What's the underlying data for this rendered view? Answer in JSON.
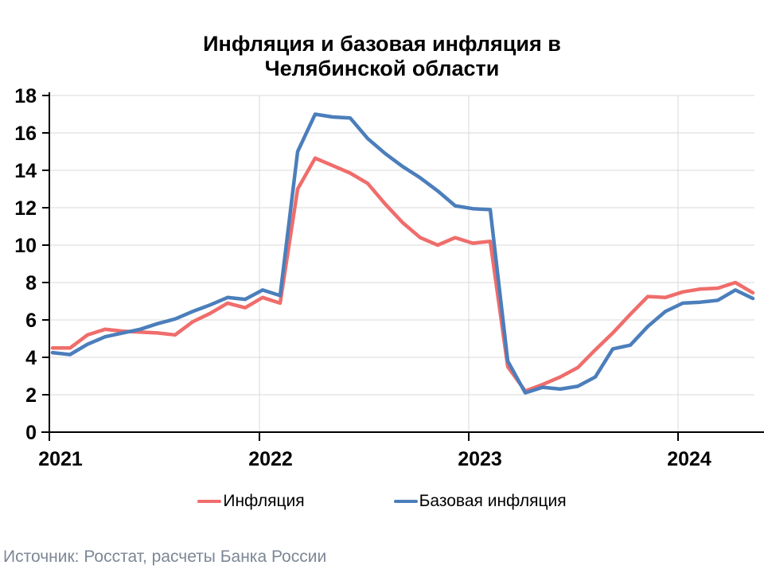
{
  "chart": {
    "title": "Инфляция и базовая инфляция в Челябинской области",
    "source_note": "Источник: Росстат, расчеты Банка России",
    "legend": [
      {
        "label": "Инфляция",
        "color": "#EF6D6B"
      },
      {
        "label": "Базовая инфляция",
        "color": "#4B7EBB"
      }
    ]
  },
  "chart_data": {
    "type": "line",
    "title": "Инфляция и базовая инфляция в Челябинской области",
    "xlabel": "",
    "ylabel": "",
    "ylim": [
      0,
      18
    ],
    "y_tick_step": 2,
    "grid": true,
    "legend_position": "bottom",
    "x_tick_labels": [
      "2021",
      "2022",
      "2023",
      "2024"
    ],
    "x": [
      "2021-01",
      "2021-02",
      "2021-03",
      "2021-04",
      "2021-05",
      "2021-06",
      "2021-07",
      "2021-08",
      "2021-09",
      "2021-10",
      "2021-11",
      "2021-12",
      "2022-01",
      "2022-02",
      "2022-03",
      "2022-04",
      "2022-05",
      "2022-06",
      "2022-07",
      "2022-08",
      "2022-09",
      "2022-10",
      "2022-11",
      "2022-12",
      "2023-01",
      "2023-02",
      "2023-03",
      "2023-04",
      "2023-05",
      "2023-06",
      "2023-07",
      "2023-08",
      "2023-09",
      "2023-10",
      "2023-11",
      "2023-12",
      "2024-01",
      "2024-02",
      "2024-03",
      "2024-04",
      "2024-05"
    ],
    "series": [
      {
        "name": "Инфляция",
        "color": "#EF6D6B",
        "values": [
          4.5,
          4.5,
          5.2,
          5.5,
          5.4,
          5.35,
          5.3,
          5.2,
          5.9,
          6.35,
          6.9,
          6.65,
          7.2,
          6.9,
          13.0,
          14.65,
          14.25,
          13.85,
          13.3,
          12.2,
          11.2,
          10.4,
          10.0,
          10.4,
          10.1,
          10.2,
          3.5,
          2.2,
          2.55,
          2.95,
          3.45,
          4.4,
          5.3,
          6.3,
          7.25,
          7.2,
          7.5,
          7.65,
          7.7,
          8.0,
          7.45
        ]
      },
      {
        "name": "Базовая инфляция",
        "color": "#4B7EBB",
        "values": [
          4.25,
          4.15,
          4.7,
          5.1,
          5.3,
          5.5,
          5.8,
          6.05,
          6.45,
          6.8,
          7.2,
          7.1,
          7.6,
          7.3,
          15.0,
          17.0,
          16.85,
          16.8,
          15.7,
          14.9,
          14.2,
          13.6,
          12.9,
          12.1,
          11.95,
          11.9,
          3.8,
          2.1,
          2.4,
          2.3,
          2.45,
          2.95,
          4.45,
          4.65,
          5.65,
          6.45,
          6.9,
          6.95,
          7.05,
          7.6,
          7.15
        ]
      }
    ]
  }
}
